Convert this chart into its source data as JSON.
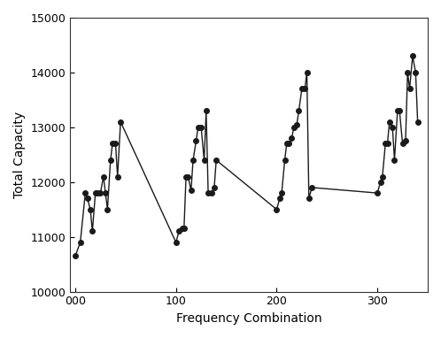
{
  "x": [
    0,
    5,
    10,
    12,
    15,
    17,
    20,
    22,
    25,
    28,
    30,
    32,
    35,
    37,
    40,
    42,
    45,
    100,
    103,
    106,
    108,
    110,
    112,
    115,
    117,
    120,
    122,
    125,
    128,
    130,
    132,
    135,
    138,
    140,
    200,
    203,
    205,
    208,
    210,
    212,
    215,
    217,
    220,
    222,
    225,
    228,
    230,
    232,
    235,
    300,
    303,
    305,
    308,
    310,
    312,
    315,
    317,
    320,
    322,
    325,
    328,
    330,
    332,
    335,
    338,
    340
  ],
  "y": [
    10650,
    10900,
    11800,
    11700,
    11500,
    11100,
    11800,
    11800,
    11800,
    12100,
    11800,
    11500,
    12400,
    12700,
    12700,
    12100,
    13100,
    10900,
    11100,
    11150,
    11150,
    12100,
    12100,
    11850,
    12400,
    12750,
    13000,
    13000,
    12400,
    13300,
    11800,
    11800,
    11900,
    12400,
    11500,
    11700,
    11800,
    12400,
    12700,
    12700,
    12800,
    13000,
    13050,
    13300,
    13700,
    13700,
    14000,
    11700,
    11900,
    11800,
    12000,
    12100,
    12700,
    12700,
    13100,
    13000,
    12400,
    13300,
    13300,
    12700,
    12750,
    14000,
    13700,
    14300,
    14000,
    13100
  ],
  "xlabel": "Frequency Combination",
  "ylabel": "Total Capacity",
  "ylim": [
    10000,
    15000
  ],
  "yticks": [
    10000,
    11000,
    12000,
    13000,
    14000,
    15000
  ],
  "xtick_positions": [
    0,
    100,
    200,
    300
  ],
  "xtick_labels": [
    "000",
    "100",
    "200",
    "300"
  ],
  "xlim": [
    -5,
    350
  ],
  "line_color": "#1a1a1a",
  "marker_color": "#1a1a1a",
  "marker_size": 4,
  "line_width": 1.0,
  "background_color": "#ffffff"
}
